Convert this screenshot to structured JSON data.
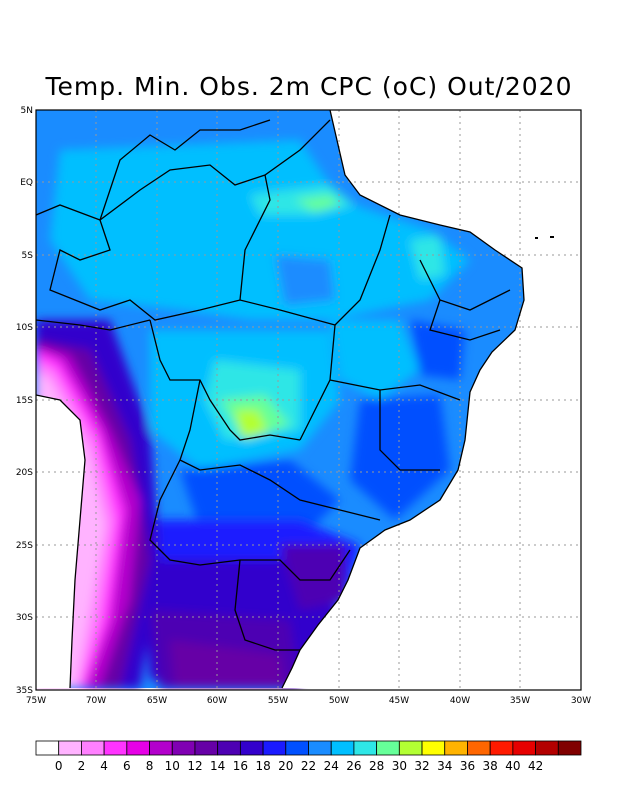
{
  "title": "Temp. Min. Obs. 2m CPC (oC) Out/2020",
  "lat_labels": [
    "5N",
    "EQ",
    "5S",
    "10S",
    "15S",
    "20S",
    "25S",
    "30S",
    "35S"
  ],
  "lon_labels": [
    "75W",
    "70W",
    "65W",
    "60W",
    "55W",
    "50W",
    "45W",
    "40W",
    "35W",
    "30W"
  ],
  "colorbar": {
    "labels": [
      "0",
      "2",
      "4",
      "6",
      "8",
      "10",
      "12",
      "14",
      "16",
      "18",
      "20",
      "22",
      "24",
      "26",
      "28",
      "30",
      "32",
      "34",
      "36",
      "38",
      "40",
      "42"
    ],
    "colors": [
      "#ffffff",
      "#ffb3ff",
      "#ff80ff",
      "#ff33ff",
      "#e600e6",
      "#b300cc",
      "#8000b3",
      "#6600a6",
      "#4d00b3",
      "#3300cc",
      "#1a1aff",
      "#0050ff",
      "#1a8cff",
      "#00bfff",
      "#2ee6e6",
      "#66ff99",
      "#b3ff33",
      "#ffff00",
      "#ffb300",
      "#ff6600",
      "#ff1a00",
      "#e60000",
      "#b30000",
      "#800000"
    ]
  }
}
